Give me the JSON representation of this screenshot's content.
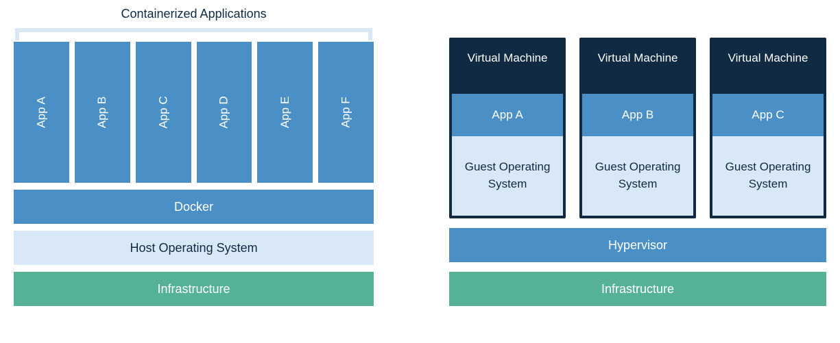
{
  "colors": {
    "text_dark": "#102a43",
    "blue": "#4a90c7",
    "blue_text": "#ffffff",
    "light_blue": "#d9e8f6",
    "light_blue_text": "#102a43",
    "green": "#56b297",
    "green_text": "#ffffff",
    "vm_header_bg": "#102a43",
    "vm_border": "#102a43",
    "bracket": "#d9e8f6"
  },
  "left": {
    "title": "Containerized Applications",
    "apps": [
      "App A",
      "App B",
      "App C",
      "App D",
      "App E",
      "App F"
    ],
    "app_tile_color": "#4a90c7",
    "layers": [
      {
        "label": "Docker",
        "bg": "#4a90c7",
        "fg": "#ffffff"
      },
      {
        "label": "Host Operating System",
        "bg": "#d9e8f6",
        "fg": "#102a43"
      },
      {
        "label": "Infrastructure",
        "bg": "#56b297",
        "fg": "#ffffff"
      }
    ]
  },
  "right": {
    "vms": [
      {
        "title": "Virtual Machine",
        "app": "App A",
        "guest": "Guest Operating System"
      },
      {
        "title": "Virtual Machine",
        "app": "App B",
        "guest": "Guest Operating System"
      },
      {
        "title": "Virtual Machine",
        "app": "App C",
        "guest": "Guest Operating System"
      }
    ],
    "vm_header_bg": "#102a43",
    "vm_app_bg": "#4a90c7",
    "vm_guest_bg": "#d9e8f6",
    "vm_guest_fg": "#102a43",
    "layers": [
      {
        "label": "Hypervisor",
        "bg": "#4a90c7",
        "fg": "#ffffff"
      },
      {
        "label": "Infrastructure",
        "bg": "#56b297",
        "fg": "#ffffff"
      }
    ]
  }
}
